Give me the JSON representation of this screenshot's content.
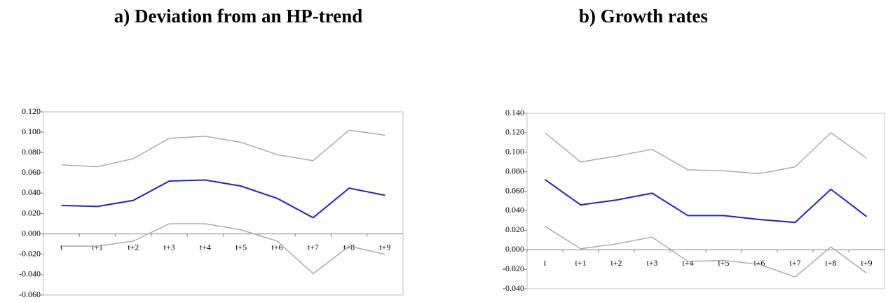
{
  "chart_data": [
    {
      "type": "line",
      "title": "a) Deviation from an HP-trend",
      "categories": [
        "t",
        "t+1",
        "t+2",
        "t+3",
        "t+4",
        "t+5",
        "t+6",
        "t+7",
        "t+8",
        "t+9"
      ],
      "series": [
        {
          "color": "#a6a6a6",
          "values": [
            0.068,
            0.066,
            0.074,
            0.094,
            0.096,
            0.09,
            0.078,
            0.072,
            0.102,
            0.097
          ]
        },
        {
          "color": "#1f1fd6",
          "values": [
            0.028,
            0.027,
            0.033,
            0.052,
            0.053,
            0.047,
            0.035,
            0.016,
            0.045,
            0.038
          ]
        },
        {
          "color": "#a6a6a6",
          "values": [
            -0.012,
            -0.012,
            -0.007,
            0.01,
            0.01,
            0.004,
            -0.007,
            -0.039,
            -0.012,
            -0.02
          ]
        }
      ],
      "ylim": [
        -0.06,
        0.12
      ],
      "yticks": [
        {
          "value": -0.06,
          "label": "-0.060"
        },
        {
          "value": -0.04,
          "label": "-0.040"
        },
        {
          "value": -0.02,
          "label": "-0.020"
        },
        {
          "value": 0,
          "label": "0.000"
        },
        {
          "value": 0.02,
          "label": "0.020"
        },
        {
          "value": 0.04,
          "label": "0.040"
        },
        {
          "value": 0.06,
          "label": "0.060"
        },
        {
          "value": 0.08,
          "label": "0.080"
        },
        {
          "value": 0.1,
          "label": "0.100"
        },
        {
          "value": 0.12,
          "label": "0.120"
        }
      ],
      "grid": false
    },
    {
      "type": "line",
      "title": "b) Growth rates",
      "categories": [
        "t",
        "t+1",
        "t+2",
        "t+3",
        "t+4",
        "t+5",
        "t+6",
        "t+7",
        "t+8",
        "t+9"
      ],
      "series": [
        {
          "color": "#a6a6a6",
          "values": [
            0.12,
            0.09,
            0.096,
            0.103,
            0.082,
            0.081,
            0.078,
            0.085,
            0.12,
            0.094
          ]
        },
        {
          "color": "#1f1fd6",
          "values": [
            0.072,
            0.046,
            0.051,
            0.058,
            0.035,
            0.035,
            0.031,
            0.028,
            0.062,
            0.034
          ]
        },
        {
          "color": "#a6a6a6",
          "values": [
            0.024,
            0.001,
            0.006,
            0.013,
            -0.012,
            -0.011,
            -0.015,
            -0.028,
            0.003,
            -0.024
          ]
        }
      ],
      "ylim": [
        -0.04,
        0.14
      ],
      "yticks": [
        {
          "value": -0.04,
          "label": "-0.040"
        },
        {
          "value": -0.02,
          "label": "-0.020"
        },
        {
          "value": 0,
          "label": "0.000"
        },
        {
          "value": 0.02,
          "label": "0.020"
        },
        {
          "value": 0.04,
          "label": "0.040"
        },
        {
          "value": 0.06,
          "label": "0.060"
        },
        {
          "value": 0.08,
          "label": "0.080"
        },
        {
          "value": 0.1,
          "label": "0.100"
        },
        {
          "value": 0.12,
          "label": "0.120"
        },
        {
          "value": 0.14,
          "label": "0.140"
        }
      ],
      "grid": false
    }
  ]
}
